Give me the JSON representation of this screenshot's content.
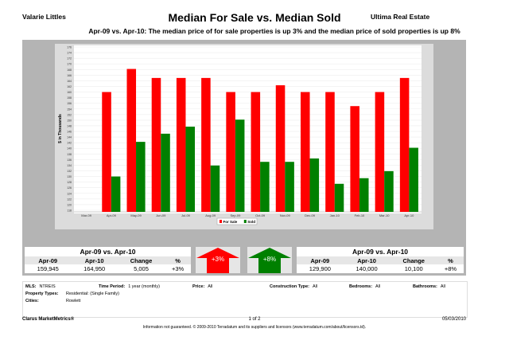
{
  "header": {
    "agent": "Valarie Littles",
    "title": "Median For Sale vs. Median Sold",
    "broker": "Ultima Real Estate",
    "subtitle": "Apr-09 vs. Apr-10:  The median price of for sale properties is up 3% and the median price of sold properties is up 8%"
  },
  "chart_data": {
    "type": "bar",
    "ylabel": "$ in Thousands",
    "ylim": [
      118,
      176
    ],
    "ytick_step": 2,
    "grid": true,
    "legend_position": "bottom",
    "categories": [
      "Mar-09",
      "Apr-09",
      "May-09",
      "Jun-09",
      "Jul-09",
      "Aug-09",
      "Sep-09",
      "Oct-09",
      "Nov-09",
      "Dec-09",
      "Jan-10",
      "Feb-10",
      "Mar-10",
      "Apr-10"
    ],
    "series": [
      {
        "name": "For Sale",
        "color": "#ff0000",
        "values": [
          null,
          160,
          168.2,
          165,
          165,
          165,
          160,
          160,
          162.4,
          160,
          160,
          155,
          160,
          165
        ]
      },
      {
        "name": "Sold",
        "color": "#008000",
        "values": [
          null,
          130,
          142.3,
          145.2,
          147.7,
          133.9,
          150.2,
          135.2,
          135.2,
          136.4,
          127.4,
          129.4,
          131.9,
          140.2
        ]
      }
    ]
  },
  "for_sale_summary": {
    "title": "Apr-09 vs. Apr-10",
    "headers": [
      "Apr-09",
      "Apr-10",
      "Change",
      "%"
    ],
    "values": [
      "159,945",
      "164,950",
      "5,005",
      "+3%"
    ],
    "arrow_label": "+3%",
    "color": "#ff0000"
  },
  "sold_summary": {
    "title": "Apr-09 vs. Apr-10",
    "headers": [
      "Apr-09",
      "Apr-10",
      "Change",
      "%"
    ],
    "values": [
      "129,900",
      "140,000",
      "10,100",
      "+8%"
    ],
    "arrow_label": "+8%",
    "color": "#008000"
  },
  "criteria": {
    "mls_label": "MLS:",
    "mls": "NTREIS",
    "period_label": "Time Period:",
    "period": "1 year (monthly)",
    "price_label": "Price:",
    "price": "All",
    "construction_label": "Construction Type:",
    "construction": "All",
    "bedrooms_label": "Bedrooms:",
    "bedrooms": "All",
    "bathrooms_label": "Bathrooms:",
    "bathrooms": "All",
    "property_label": "Property Types:",
    "property": "Residential: (Single Family)",
    "cities_label": "Cities:",
    "cities": "Rowlett"
  },
  "footer": {
    "brand": "Clarus MarketMetrics®",
    "page": "1 of 2",
    "date": "05/03/2010",
    "disclaimer": "Information not guaranteed. © 2009-2010 Terradatum and its suppliers and licensors (www.terradatum.com/about/licensors.td)."
  }
}
